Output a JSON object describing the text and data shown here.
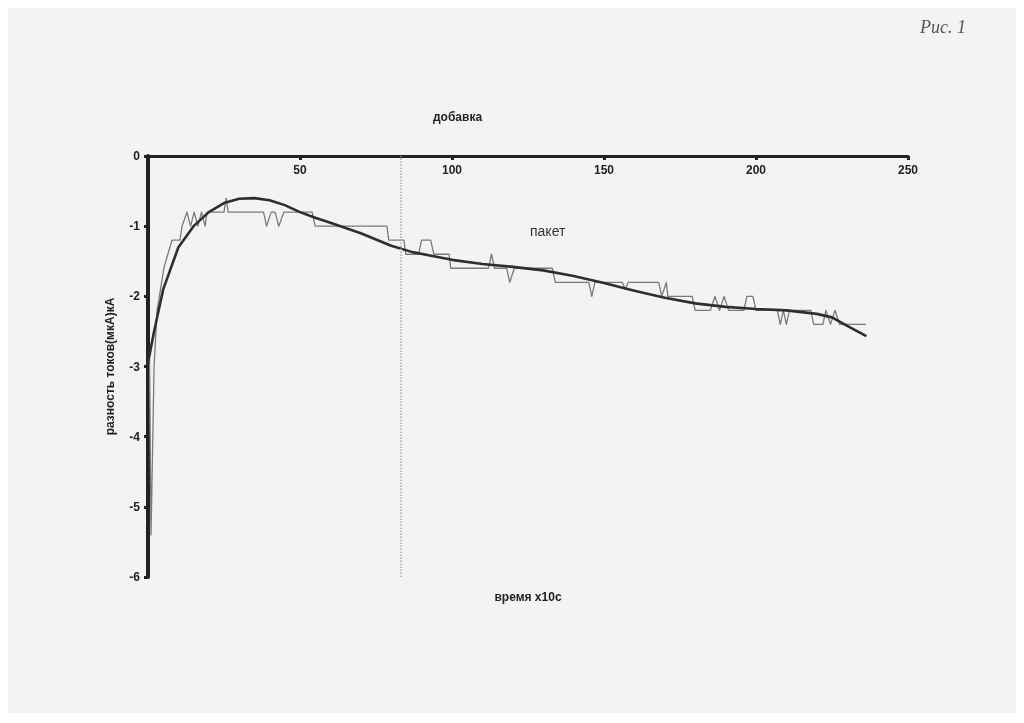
{
  "chart_data": {
    "type": "line",
    "title": "добавка",
    "xlabel": "время x10с",
    "ylabel": "разность токов(мкА)кА",
    "annotations": [
      "Рис. 1",
      "пакет"
    ],
    "xlim": [
      0,
      250
    ],
    "xticks": [
      50,
      100,
      150,
      200,
      250
    ],
    "ylim": [
      -6,
      0
    ],
    "yticks": [
      -6,
      -5,
      -4,
      -3,
      -2,
      -1,
      0
    ],
    "grid": false,
    "marker": "none",
    "line_style": "solid",
    "ref_lines": [
      {
        "axis": "x",
        "value": 83,
        "label": null,
        "color": "#aaaaaa",
        "line_style": "dotted"
      }
    ],
    "series": [
      {
        "color": "#7a7a7a",
        "x": [
          0.5,
          1,
          2,
          3,
          5.3,
          7.9,
          10.5,
          11.2,
          12.8,
          14,
          15.2,
          16.4,
          17.6,
          18.8,
          19.4,
          25,
          25.7,
          26.4,
          38,
          39,
          40.5,
          41.8,
          43,
          44.7,
          54,
          55,
          78.6,
          79.2,
          84.2,
          84.8,
          89,
          90,
          93,
          94,
          99,
          99.6,
          112,
          113,
          114,
          118,
          119,
          120.5,
          133,
          134,
          145,
          146,
          147,
          156,
          157,
          158,
          168,
          169,
          170.5,
          171,
          179,
          180,
          185,
          186.5,
          188,
          189.5,
          191,
          196,
          197,
          199,
          200,
          207,
          208,
          209,
          210,
          211,
          218,
          219,
          222,
          223,
          224.5,
          226,
          227.5,
          229,
          236
        ],
        "values": [
          -2.9,
          -5.4,
          -3.0,
          -2.2,
          -1.58,
          -1.2,
          -1.2,
          -1.0,
          -0.8,
          -1.0,
          -0.8,
          -1.0,
          -0.8,
          -1.0,
          -0.8,
          -0.8,
          -0.6,
          -0.8,
          -0.8,
          -1.0,
          -0.8,
          -0.8,
          -1.0,
          -0.8,
          -0.8,
          -1.0,
          -1.0,
          -1.2,
          -1.2,
          -1.4,
          -1.4,
          -1.2,
          -1.2,
          -1.4,
          -1.4,
          -1.6,
          -1.6,
          -1.4,
          -1.6,
          -1.6,
          -1.8,
          -1.6,
          -1.6,
          -1.8,
          -1.8,
          -2.0,
          -1.8,
          -1.8,
          -1.9,
          -1.8,
          -1.8,
          -2.0,
          -1.8,
          -2.0,
          -2.0,
          -2.2,
          -2.2,
          -2.0,
          -2.2,
          -2.0,
          -2.2,
          -2.2,
          -2.0,
          -2.0,
          -2.2,
          -2.2,
          -2.4,
          -2.2,
          -2.4,
          -2.2,
          -2.2,
          -2.4,
          -2.4,
          -2.2,
          -2.4,
          -2.2,
          -2.4,
          -2.4,
          -2.4
        ]
      },
      {
        "color": "#2e2e2e",
        "x": [
          0,
          2,
          5,
          10,
          15,
          20,
          25,
          30,
          35,
          40,
          45,
          50,
          55,
          60,
          70,
          80,
          87,
          100,
          110,
          120,
          130,
          140,
          150,
          160,
          170,
          180,
          190,
          200,
          210,
          220,
          225,
          230,
          236
        ],
        "values": [
          -2.95,
          -2.5,
          -1.9,
          -1.3,
          -1.0,
          -0.8,
          -0.67,
          -0.61,
          -0.6,
          -0.63,
          -0.7,
          -0.8,
          -0.88,
          -0.95,
          -1.1,
          -1.28,
          -1.37,
          -1.48,
          -1.54,
          -1.58,
          -1.63,
          -1.71,
          -1.81,
          -1.92,
          -2.02,
          -2.1,
          -2.15,
          -2.18,
          -2.2,
          -2.25,
          -2.3,
          -2.42,
          -2.56
        ]
      }
    ]
  }
}
